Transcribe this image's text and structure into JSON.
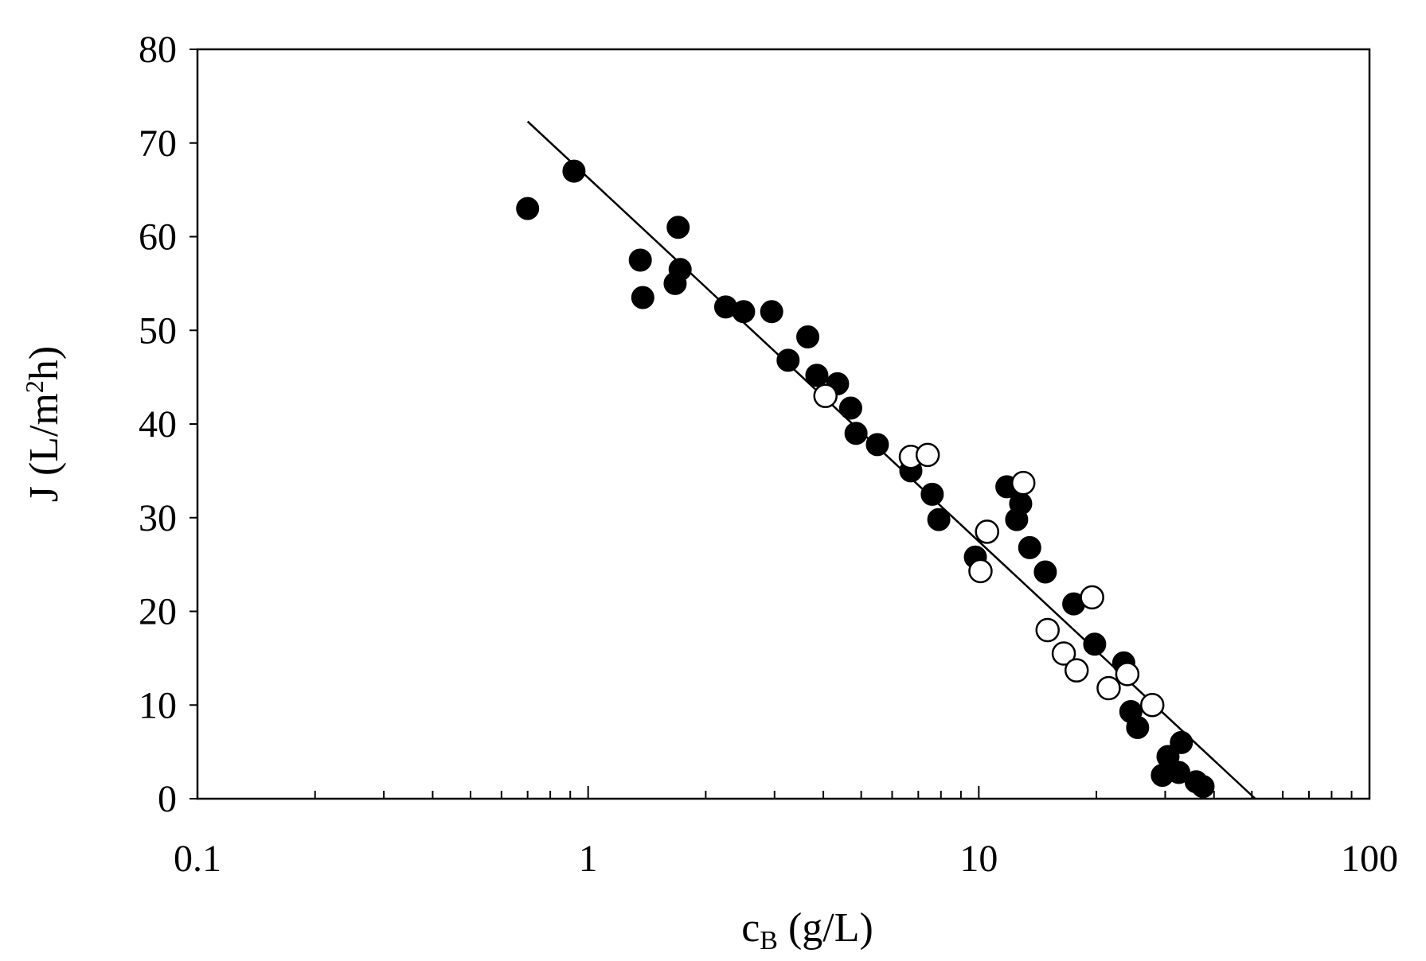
{
  "chart_data": {
    "type": "scatter",
    "xscale": "log",
    "xlim": [
      0.1,
      100
    ],
    "ylim": [
      0,
      80
    ],
    "xticks": [
      "0.1",
      "1",
      "10",
      "100"
    ],
    "yticks": [
      "0",
      "10",
      "20",
      "30",
      "40",
      "50",
      "60",
      "70",
      "80"
    ],
    "xlabel": {
      "main": "c",
      "sub": "B",
      "rest": " (g/L)"
    },
    "ylabel": {
      "pre": "J (L/m",
      "sup": "2",
      "post": "h)"
    },
    "grid": false,
    "legend": "none",
    "series": [
      {
        "marker": "filled-circle",
        "points": [
          [
            0.7,
            63.0
          ],
          [
            0.92,
            67.0
          ],
          [
            1.36,
            57.5
          ],
          [
            1.38,
            53.5
          ],
          [
            1.67,
            55.0
          ],
          [
            1.7,
            61.0
          ],
          [
            1.72,
            56.5
          ],
          [
            2.25,
            52.5
          ],
          [
            2.5,
            52.0
          ],
          [
            2.95,
            52.0
          ],
          [
            3.25,
            46.8
          ],
          [
            3.65,
            49.3
          ],
          [
            3.85,
            45.2
          ],
          [
            4.35,
            44.3
          ],
          [
            4.7,
            41.7
          ],
          [
            4.85,
            39.0
          ],
          [
            5.5,
            37.8
          ],
          [
            6.7,
            35.0
          ],
          [
            7.6,
            32.5
          ],
          [
            7.9,
            29.8
          ],
          [
            9.8,
            25.8
          ],
          [
            11.8,
            33.3
          ],
          [
            12.5,
            29.8
          ],
          [
            12.8,
            31.5
          ],
          [
            13.5,
            26.8
          ],
          [
            14.8,
            24.2
          ],
          [
            17.5,
            20.8
          ],
          [
            19.8,
            16.5
          ],
          [
            23.5,
            14.5
          ],
          [
            24.5,
            9.3
          ],
          [
            25.5,
            7.6
          ],
          [
            29.5,
            2.5
          ],
          [
            30.5,
            4.5
          ],
          [
            32.5,
            2.8
          ],
          [
            33.0,
            6.0
          ],
          [
            36.0,
            1.8
          ],
          [
            37.5,
            1.3
          ]
        ]
      },
      {
        "marker": "open-circle",
        "points": [
          [
            4.05,
            43.0
          ],
          [
            6.7,
            36.5
          ],
          [
            7.4,
            36.7
          ],
          [
            10.1,
            24.3
          ],
          [
            10.5,
            28.5
          ],
          [
            13.0,
            33.7
          ],
          [
            15.0,
            18.0
          ],
          [
            16.5,
            15.5
          ],
          [
            17.8,
            13.7
          ],
          [
            19.5,
            21.5
          ],
          [
            21.5,
            11.8
          ],
          [
            24.0,
            13.3
          ],
          [
            27.8,
            10.0
          ]
        ]
      }
    ],
    "fit_line": {
      "x": [
        0.7,
        51.0
      ],
      "y": [
        72.3,
        0.0
      ]
    }
  }
}
